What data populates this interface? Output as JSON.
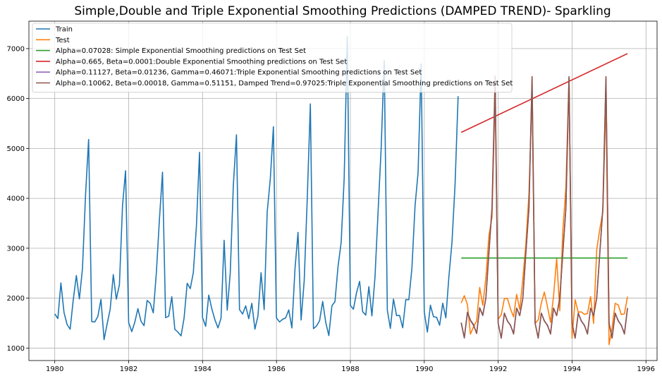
{
  "chart_data": {
    "type": "line",
    "title": "Simple,Double and Triple Exponential Smoothing Predictions (DAMPED TREND)- Sparkling",
    "xlabel": "",
    "ylabel": "",
    "xlim": [
      1979.3,
      1996.3
    ],
    "ylim": [
      750,
      7550
    ],
    "xticks": [
      1980,
      1982,
      1984,
      1986,
      1988,
      1990,
      1992,
      1994,
      1996
    ],
    "yticks": [
      1000,
      2000,
      3000,
      4000,
      5000,
      6000,
      7000
    ],
    "grid": true,
    "legend_position": "top-left",
    "series": [
      {
        "name": "Train",
        "color": "#1f77b4",
        "x_start": 1980.0,
        "x_step": 0.08333,
        "values": [
          1686,
          1591,
          2304,
          1712,
          1471,
          1377,
          1966,
          2453,
          1984,
          2596,
          4087,
          5179,
          1530,
          1523,
          1633,
          1976,
          1170,
          1480,
          1781,
          2472,
          1981,
          2273,
          3857,
          4551,
          1510,
          1329,
          1518,
          1790,
          1537,
          1449,
          1954,
          1897,
          1706,
          2514,
          3593,
          4524,
          1609,
          1638,
          2030,
          1375,
          1320,
          1245,
          1600,
          2298,
          2191,
          2511,
          3440,
          4923,
          1609,
          1435,
          2061,
          1789,
          1567,
          1404,
          1597,
          3159,
          1759,
          2504,
          4273,
          5274,
          1771,
          1682,
          1846,
          1589,
          1896,
          1379,
          1645,
          2512,
          1771,
          3727,
          4388,
          5434,
          1606,
          1523,
          1577,
          1605,
          1765,
          1403,
          2584,
          3318,
          1562,
          2349,
          3987,
          5891,
          1389,
          1442,
          1548,
          1935,
          1518,
          1250,
          1847,
          1930,
          2638,
          3114,
          4405,
          7242,
          1853,
          1779,
          2108,
          2336,
          1728,
          1661,
          2230,
          1645,
          2421,
          3740,
          4988,
          6757,
          1757,
          1394,
          1982,
          1650,
          1654,
          1406,
          1971,
          1968,
          2608,
          3845,
          4514,
          6694,
          1720,
          1321,
          1859,
          1628,
          1615,
          1457,
          1899,
          1605,
          2424,
          3116,
          4286,
          6047
        ]
      },
      {
        "name": "Test",
        "color": "#ff7f0e",
        "x_start": 1991.0,
        "x_step": 0.08333,
        "values": [
          1902,
          2049,
          1874,
          1279,
          1432,
          1540,
          2214,
          1857,
          2408,
          3252,
          3627,
          6153,
          1577,
          1667,
          1993,
          1997,
          1783,
          1625,
          2076,
          1773,
          2377,
          3088,
          4096,
          6119,
          1494,
          1564,
          1898,
          2121,
          1831,
          1515,
          2048,
          2795,
          1749,
          3339,
          4227,
          6410,
          1197,
          1968,
          1720,
          1725,
          1674,
          1693,
          2031,
          1495,
          2968,
          3385,
          3729,
          5999,
          1070,
          1402,
          1897,
          1862,
          1670,
          1688,
          2031
        ]
      },
      {
        "name": "Alpha=0.07028: Simple Exponential Smoothing predictions on Test Set",
        "color": "#2ca02c",
        "x": [
          1991.0,
          1995.5
        ],
        "values": [
          2804,
          2804
        ]
      },
      {
        "name": "Alpha=0.665, Beta=0.0001:Double Exponential Smoothing predictions on Test Set",
        "color": "#d62728",
        "x": [
          1991.0,
          1995.5
        ],
        "values": [
          5322,
          6900
        ]
      },
      {
        "name": "Alpha=0.11127, Beta=0.01236, Gamma=0.46071:Triple Exponential Smoothing predictions on Test Set",
        "color": "#9467bd",
        "x_start": 1991.0,
        "x_step": 0.08333,
        "values": [
          1500,
          1200,
          1700,
          1550,
          1450,
          1300,
          1800,
          1650,
          2000,
          2900,
          3800,
          6300,
          1500,
          1200,
          1700,
          1550,
          1450,
          1300,
          1800,
          1650,
          2000,
          2900,
          3800,
          6400,
          1500,
          1200,
          1700,
          1550,
          1450,
          1300,
          1800,
          1650,
          2000,
          2900,
          3800,
          6400,
          1500,
          1200,
          1700,
          1550,
          1450,
          1300,
          1800,
          1650,
          2000,
          2900,
          3800,
          6400,
          1500,
          1200,
          1700,
          1550,
          1450,
          1300,
          1800
        ]
      },
      {
        "name": "Alpha=0.10062, Beta=0.00018, Gamma=0.51151, Damped Trend=0.97025:Triple Exponential Smoothing predictions on Test Set",
        "color": "#8c564b",
        "x_start": 1991.0,
        "x_step": 0.08333,
        "values": [
          1510,
          1210,
          1720,
          1560,
          1470,
          1290,
          1810,
          1660,
          2010,
          2920,
          3820,
          6450,
          1500,
          1200,
          1700,
          1540,
          1460,
          1280,
          1800,
          1650,
          2000,
          2910,
          3810,
          6440,
          1500,
          1200,
          1700,
          1540,
          1460,
          1280,
          1800,
          1650,
          2000,
          2910,
          3810,
          6440,
          1500,
          1200,
          1700,
          1540,
          1460,
          1280,
          1800,
          1650,
          2000,
          2910,
          3810,
          6440,
          1500,
          1200,
          1700,
          1540,
          1460,
          1280,
          1800
        ]
      }
    ]
  }
}
